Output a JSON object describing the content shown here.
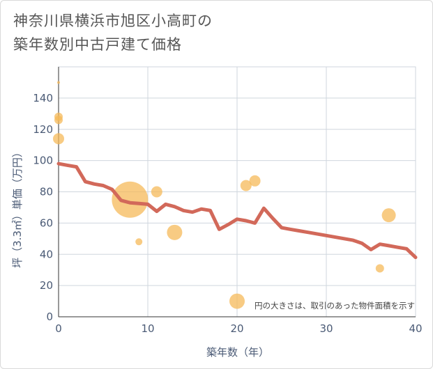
{
  "chart_data": {
    "type": "scatter",
    "title": [
      "神奈川県横浜市旭区小高町の",
      "築年数別中古戸建て価格"
    ],
    "xlabel": "築年数（年）",
    "ylabel": "坪（3.3㎡）単価（万円）",
    "xlim": [
      0,
      40
    ],
    "ylim": [
      0,
      160
    ],
    "xticks": [
      0,
      10,
      20,
      30,
      40
    ],
    "yticks": [
      0,
      20,
      40,
      60,
      80,
      100,
      120,
      140
    ],
    "grid": true,
    "annotation": "円の大きさは、取引のあった物件面積を示す",
    "colors": {
      "bubble": "#f5b95a",
      "line": "#d2695a",
      "grid": "#cfd6de"
    },
    "scatter": [
      {
        "x": 0,
        "y": 150,
        "size": 2
      },
      {
        "x": 0,
        "y": 128,
        "size": 6
      },
      {
        "x": 0,
        "y": 126,
        "size": 6
      },
      {
        "x": 0,
        "y": 114,
        "size": 8
      },
      {
        "x": 8,
        "y": 75,
        "size": 26
      },
      {
        "x": 9,
        "y": 48,
        "size": 5
      },
      {
        "x": 11,
        "y": 80,
        "size": 8
      },
      {
        "x": 13,
        "y": 54,
        "size": 11
      },
      {
        "x": 20,
        "y": 10,
        "size": 11
      },
      {
        "x": 21,
        "y": 84,
        "size": 8
      },
      {
        "x": 22,
        "y": 87,
        "size": 8
      },
      {
        "x": 36,
        "y": 31,
        "size": 6
      },
      {
        "x": 37,
        "y": 65,
        "size": 10
      }
    ],
    "line": {
      "x": [
        0,
        1,
        2,
        3,
        4,
        5,
        6,
        7,
        8,
        9,
        10,
        11,
        12,
        13,
        14,
        15,
        16,
        17,
        18,
        19,
        20,
        21,
        22,
        23,
        24,
        25,
        26,
        27,
        28,
        29,
        30,
        31,
        32,
        33,
        34,
        35,
        36,
        37,
        38,
        39,
        40
      ],
      "y": [
        98,
        97,
        96,
        86.5,
        85,
        84,
        81.5,
        74.5,
        73,
        72.5,
        72,
        67.5,
        72,
        70.5,
        68,
        67,
        69,
        68,
        56,
        59,
        62.5,
        61.5,
        60,
        69.5,
        63,
        57,
        56,
        55,
        54,
        53,
        52,
        51,
        50,
        49,
        47,
        43,
        46.5,
        45.5,
        44.5,
        43.5,
        38
      ]
    }
  }
}
